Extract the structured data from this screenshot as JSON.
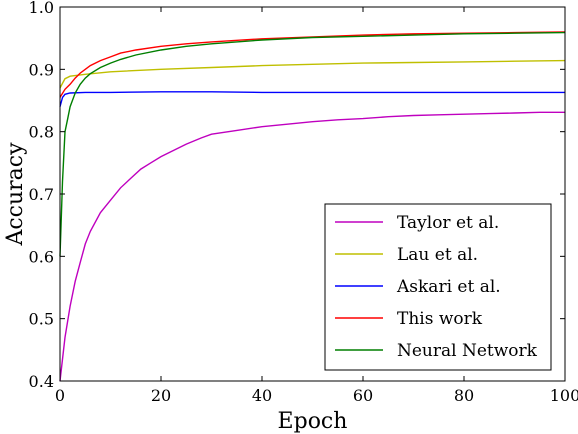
{
  "chart_data": {
    "type": "line",
    "title": "",
    "xlabel": "Epoch",
    "ylabel": "Accuracy",
    "xlim": [
      0,
      100
    ],
    "ylim": [
      0.4,
      1.0
    ],
    "x_ticks": [
      0,
      20,
      40,
      60,
      80,
      100
    ],
    "y_ticks": [
      0.4,
      0.5,
      0.6,
      0.7,
      0.8,
      0.9,
      1.0
    ],
    "x_tick_labels": [
      "0",
      "20",
      "40",
      "60",
      "80",
      "100"
    ],
    "y_tick_labels": [
      "0.4",
      "0.5",
      "0.6",
      "0.7",
      "0.8",
      "0.9",
      "1.0"
    ],
    "grid": false,
    "legend_position": "bottom-right",
    "series": [
      {
        "name": "Taylor et al.",
        "color": "#bf00bf",
        "x": [
          0,
          1,
          2,
          3,
          4,
          5,
          6,
          8,
          10,
          12,
          14,
          16,
          18,
          20,
          22,
          25,
          28,
          30,
          35,
          40,
          45,
          50,
          55,
          60,
          65,
          70,
          75,
          80,
          85,
          90,
          95,
          100
        ],
        "y": [
          0.4,
          0.47,
          0.52,
          0.56,
          0.59,
          0.62,
          0.64,
          0.67,
          0.69,
          0.71,
          0.725,
          0.74,
          0.75,
          0.76,
          0.768,
          0.78,
          0.79,
          0.796,
          0.802,
          0.808,
          0.812,
          0.816,
          0.819,
          0.821,
          0.824,
          0.826,
          0.827,
          0.828,
          0.829,
          0.83,
          0.831,
          0.831
        ]
      },
      {
        "name": "Lau et al.",
        "color": "#bfbf00",
        "x": [
          0,
          1,
          2,
          5,
          10,
          20,
          30,
          40,
          50,
          60,
          70,
          80,
          90,
          100
        ],
        "y": [
          0.87,
          0.885,
          0.889,
          0.892,
          0.896,
          0.9,
          0.903,
          0.906,
          0.908,
          0.91,
          0.911,
          0.912,
          0.913,
          0.914
        ]
      },
      {
        "name": "Askari et al.",
        "color": "#0000ff",
        "x": [
          0,
          0.5,
          1,
          2,
          5,
          10,
          20,
          30,
          40,
          50,
          60,
          70,
          80,
          90,
          100
        ],
        "y": [
          0.84,
          0.855,
          0.86,
          0.862,
          0.863,
          0.863,
          0.864,
          0.864,
          0.863,
          0.863,
          0.863,
          0.863,
          0.863,
          0.863,
          0.863
        ]
      },
      {
        "name": "This work",
        "color": "#ff0000",
        "x": [
          0,
          1,
          2,
          3,
          4,
          5,
          6,
          8,
          10,
          12,
          15,
          20,
          25,
          30,
          40,
          50,
          60,
          70,
          80,
          90,
          100
        ],
        "y": [
          0.855,
          0.868,
          0.876,
          0.886,
          0.894,
          0.9,
          0.906,
          0.914,
          0.92,
          0.926,
          0.931,
          0.937,
          0.941,
          0.944,
          0.949,
          0.952,
          0.955,
          0.957,
          0.958,
          0.959,
          0.96
        ]
      },
      {
        "name": "Neural Network",
        "color": "#007f00",
        "x": [
          0,
          0.5,
          1,
          1.5,
          2,
          3,
          4,
          5,
          6,
          8,
          10,
          12,
          15,
          20,
          25,
          30,
          40,
          50,
          60,
          70,
          80,
          90,
          100
        ],
        "y": [
          0.6,
          0.72,
          0.8,
          0.82,
          0.84,
          0.862,
          0.876,
          0.886,
          0.893,
          0.903,
          0.91,
          0.916,
          0.923,
          0.931,
          0.937,
          0.941,
          0.947,
          0.951,
          0.953,
          0.955,
          0.957,
          0.958,
          0.959
        ]
      }
    ]
  }
}
